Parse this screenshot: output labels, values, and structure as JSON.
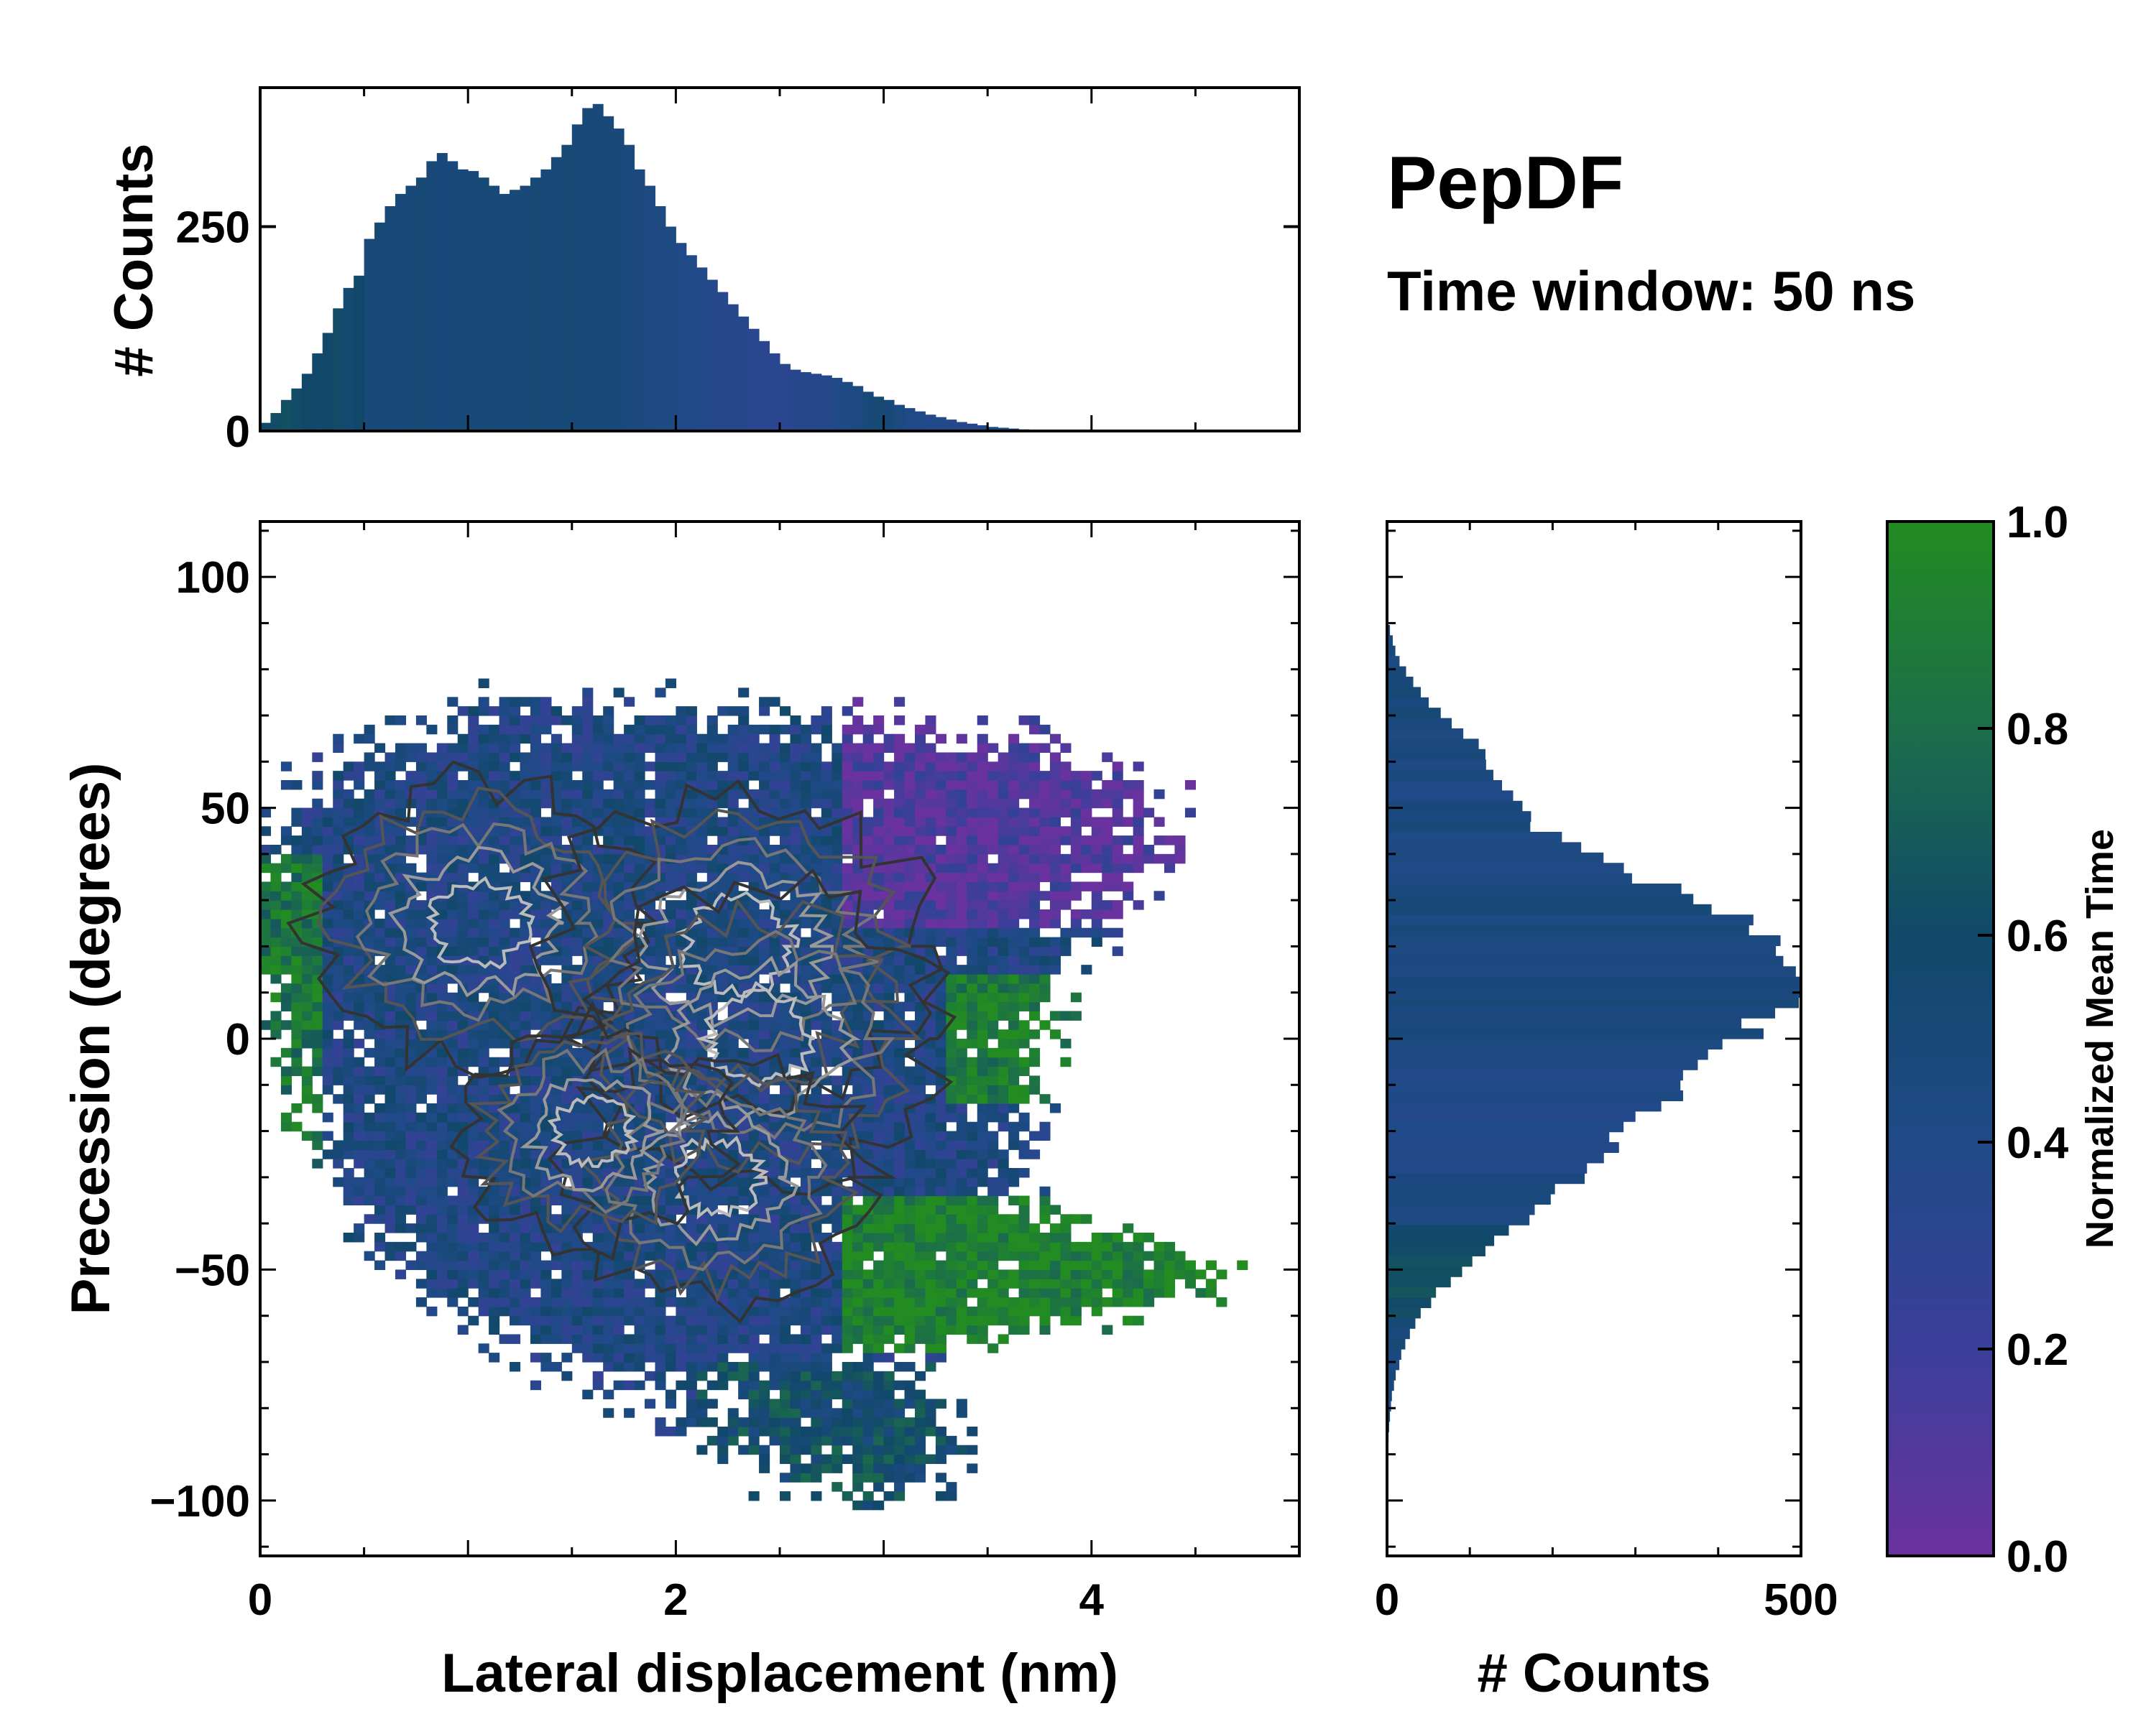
{
  "chart_data": {
    "type": "heatmap",
    "title": "PepDF",
    "subtitle": "Time window: 50 ns",
    "main": {
      "xlabel": "Lateral displacement (nm)",
      "ylabel": "Precession (degrees)",
      "xlim": [
        0,
        5
      ],
      "ylim": [
        -112,
        112
      ],
      "xticks": [
        "0",
        "2",
        "4"
      ],
      "xtick_values": [
        0,
        2,
        4
      ],
      "yticks": [
        "100",
        "50",
        "0",
        "−50",
        "−100"
      ],
      "ytick_values": [
        100,
        50,
        0,
        -50,
        -100
      ],
      "density_peaks": [
        {
          "x": 1.05,
          "y": 25,
          "weight": 0.9
        },
        {
          "x": 2.3,
          "y": 20,
          "weight": 1.0
        },
        {
          "x": 2.4,
          "y": 0,
          "weight": 0.95
        },
        {
          "x": 2.2,
          "y": -30,
          "weight": 0.8
        },
        {
          "x": 1.6,
          "y": -20,
          "weight": 0.7
        }
      ],
      "color_regions": [
        {
          "label": "high mean time (green) lower-right lobe",
          "x_range": [
            2.8,
            5.0
          ],
          "y_range": [
            -68,
            -35
          ],
          "value": 0.95
        },
        {
          "label": "low mean time (purple) upper-right lobe",
          "x_range": [
            2.8,
            4.8
          ],
          "y_range": [
            25,
            80
          ],
          "value": 0.1
        },
        {
          "label": "mid (teal) lower tail",
          "x_range": [
            2.1,
            4.0
          ],
          "y_range": [
            -112,
            -70
          ],
          "value": 0.6
        }
      ]
    },
    "top_histogram": {
      "ylabel": "# Counts",
      "yticks": [
        "0",
        "250"
      ],
      "ytick_values": [
        0,
        250
      ],
      "ylim": [
        0,
        420
      ],
      "x_start": 0,
      "x_step": 0.05,
      "counts": [
        10,
        22,
        38,
        52,
        70,
        95,
        120,
        150,
        175,
        190,
        235,
        255,
        275,
        290,
        300,
        310,
        330,
        340,
        330,
        320,
        318,
        310,
        300,
        290,
        295,
        300,
        310,
        320,
        335,
        350,
        375,
        395,
        400,
        385,
        370,
        350,
        320,
        300,
        275,
        250,
        230,
        215,
        200,
        185,
        170,
        155,
        140,
        125,
        110,
        95,
        82,
        75,
        72,
        70,
        68,
        65,
        60,
        55,
        48,
        42,
        38,
        32,
        28,
        24,
        20,
        17,
        14,
        11,
        9,
        7,
        5,
        4,
        3,
        2,
        1,
        1,
        0,
        0,
        0,
        0,
        0,
        0,
        0,
        0,
        0,
        0,
        0,
        0,
        0,
        0,
        0,
        0,
        0,
        0,
        0,
        0,
        0,
        0,
        0,
        0
      ],
      "colors": [
        0.6,
        0.62,
        0.64,
        0.62,
        0.6,
        0.58,
        0.6,
        0.62,
        0.55,
        0.6,
        0.5,
        0.52,
        0.5,
        0.48,
        0.5,
        0.52,
        0.5,
        0.48,
        0.5,
        0.5,
        0.5,
        0.52,
        0.5,
        0.5,
        0.5,
        0.5,
        0.52,
        0.5,
        0.5,
        0.52,
        0.5,
        0.5,
        0.5,
        0.5,
        0.48,
        0.46,
        0.46,
        0.44,
        0.44,
        0.42,
        0.4,
        0.4,
        0.38,
        0.36,
        0.35,
        0.34,
        0.34,
        0.33,
        0.33,
        0.32,
        0.33,
        0.35,
        0.34,
        0.35,
        0.36,
        0.4,
        0.42,
        0.45,
        0.5,
        0.52,
        0.5,
        0.45,
        0.4,
        0.4,
        0.38,
        0.38,
        0.36,
        0.35,
        0.35,
        0.35,
        0.4,
        0.4,
        0.4,
        0.4,
        0.4,
        0.4,
        0.4,
        0.4,
        0.4,
        0.4,
        0.4,
        0.4,
        0.4,
        0.4,
        0.4,
        0.4,
        0.4,
        0.4,
        0.4,
        0.4,
        0.4,
        0.4,
        0.4,
        0.4,
        0.4,
        0.4,
        0.4,
        0.4,
        0.4,
        0.4
      ]
    },
    "right_histogram": {
      "xlabel": "# Counts",
      "xticks": [
        "0",
        "500"
      ],
      "xtick_values": [
        0,
        500
      ],
      "xlim": [
        0,
        500
      ]
    },
    "colorbar": {
      "label": "Normalized Mean Time",
      "ticks": [
        "0.0",
        "0.2",
        "0.4",
        "0.6",
        "0.8",
        "1.0"
      ],
      "tick_values": [
        0,
        0.2,
        0.4,
        0.6,
        0.8,
        1.0
      ],
      "colormap": [
        "#6a329f",
        "#3b3f9a",
        "#1f4a87",
        "#114869",
        "#1c6e4a",
        "#228b22"
      ]
    }
  }
}
